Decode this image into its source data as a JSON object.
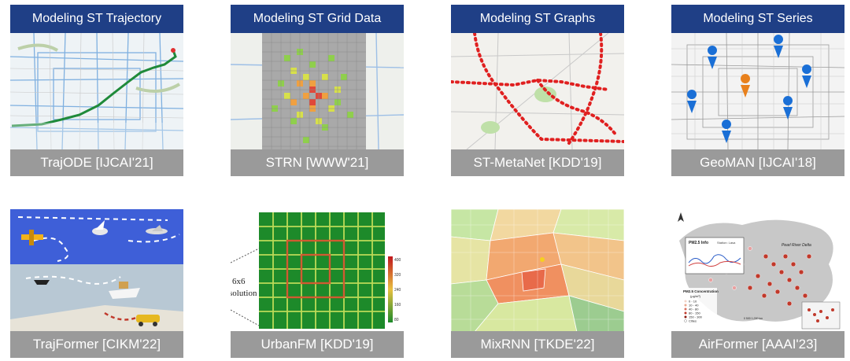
{
  "row1": {
    "headers": [
      "Modeling ST Trajectory",
      "Modeling ST Grid Data",
      "Modeling ST Graphs",
      "Modeling ST Series"
    ],
    "captions": [
      "TrajODE [IJCAI'21]",
      "STRN [WWW'21]",
      "ST-MetaNet [KDD'19]",
      "GeoMAN [IJCAI'18]"
    ]
  },
  "row2": {
    "captions": [
      "TrajFormer [CIKM'22]",
      "UrbanFM [KDD'19]",
      "MixRNN [TKDE'22]",
      "AirFormer [AAAI'23]"
    ]
  },
  "figure_text": {
    "urbanfm_label_line1": "6x6",
    "urbanfm_label_line2": "solution",
    "urbanfm_scale": [
      "400",
      "320",
      "240",
      "160",
      "80"
    ],
    "airformer_inset_title": "PM2.5 Info",
    "airformer_inset_station": "Station: Lasa",
    "airformer_legend_title": "PM2.5 Concentration",
    "airformer_legend_unit": "(μg/m³)",
    "airformer_legend_items": [
      "0 - 10",
      "10 - 40",
      "40 - 80",
      "80 - 150",
      "150 - 300",
      "Cities"
    ],
    "airformer_region": "Pearl River Delta",
    "airformer_scale": "0   500   1,000 km"
  },
  "colors": {
    "header_bg": "#1f3f86",
    "caption_bg": "#9a9a9a",
    "trajectory_line": "#1f8a3a",
    "graph_nodes": "#e02020",
    "marker_blue": "#1a6fd6",
    "marker_orange": "#e8801c"
  }
}
